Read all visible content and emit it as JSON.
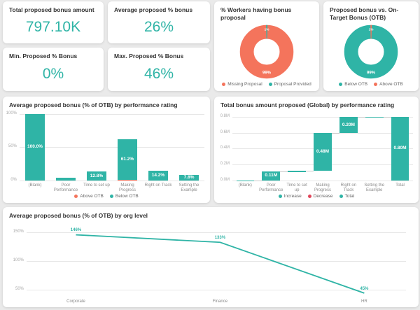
{
  "theme": {
    "teal": "#2FB4A6",
    "coral": "#F4745C",
    "red": "#E0465A",
    "page_bg": "#EAEAEA",
    "card_bg": "#FFFFFF",
    "title_color": "#333333",
    "axis_text": "#A9A9A9",
    "legend_text": "#666666",
    "grid_line": "#E6E6E6"
  },
  "kpi_cards": [
    {
      "title": "Total proposed bonus amount",
      "value": "797.10K"
    },
    {
      "title": "Average proposed % bonus",
      "value": "26%"
    },
    {
      "title": "Min. Proposed % Bonus",
      "value": "0%"
    },
    {
      "title": "Max. Proposed % Bonus",
      "value": "46%"
    }
  ],
  "chart_data": [
    {
      "type": "pie",
      "title": "% Workers having bonus proposal",
      "slices": [
        {
          "label": "Missing Proposal",
          "value": 99,
          "color_key": "coral",
          "data_label": "99%"
        },
        {
          "label": "Proposal Provided",
          "value": 1,
          "color_key": "teal",
          "data_label": "1%"
        }
      ],
      "legend": [
        {
          "label": "Missing Proposal",
          "color_key": "coral"
        },
        {
          "label": "Proposal Provided",
          "color_key": "teal"
        }
      ],
      "legend_position": "bottom"
    },
    {
      "type": "pie",
      "title": "Proposed bonus vs. On-Target Bonus (OTB)",
      "slices": [
        {
          "label": "Below OTB",
          "value": 99,
          "color_key": "teal",
          "data_label": "99%"
        },
        {
          "label": "Above OTB",
          "value": 1,
          "color_key": "coral",
          "data_label": "1%"
        }
      ],
      "legend": [
        {
          "label": "Below OTB",
          "color_key": "teal"
        },
        {
          "label": "Above OTB",
          "color_key": "coral"
        }
      ],
      "legend_position": "bottom"
    },
    {
      "type": "bar",
      "title": "Average proposed bonus (% of OTB) by performance rating",
      "categories": [
        "(Blank)",
        "Poor Performance",
        "Time to set up",
        "Making Progress",
        "Right on Track",
        "Setting the Example"
      ],
      "series": [
        {
          "name": "Above OTB",
          "color_key": "coral",
          "values": [
            0,
            0,
            0,
            0.8,
            0,
            0
          ],
          "data_labels": [
            "",
            "",
            "",
            "",
            "",
            ""
          ]
        },
        {
          "name": "Below OTB",
          "color_key": "teal",
          "values": [
            100.0,
            4.0,
            12.8,
            61.2,
            14.2,
            7.8
          ],
          "data_labels": [
            "100.0%",
            "",
            "12.8%",
            "61.2%",
            "14.2%",
            "7.8%"
          ]
        }
      ],
      "ylim": [
        0,
        100
      ],
      "yticks": [
        {
          "value": 0,
          "label": "0%"
        },
        {
          "value": 50,
          "label": "50%"
        },
        {
          "value": 100,
          "label": "100%"
        }
      ],
      "legend": [
        {
          "label": "Above OTB",
          "color_key": "coral"
        },
        {
          "label": "Below OTB",
          "color_key": "teal"
        }
      ],
      "legend_position": "bottom",
      "grid": true
    },
    {
      "type": "waterfall",
      "title": "Total bonus amount proposed (Global) by performance rating",
      "categories": [
        "(Blank)",
        "Poor Performance",
        "Time to set up",
        "Making Progress",
        "Right on Track",
        "Setting the Example",
        "Total"
      ],
      "values": [
        0.001,
        0.11,
        0.008,
        0.48,
        0.2,
        0.003,
        0.8
      ],
      "is_total": [
        false,
        false,
        false,
        false,
        false,
        false,
        true
      ],
      "data_labels": [
        "",
        "0.11M",
        "",
        "0.48M",
        "0.20M",
        "",
        "0.80M"
      ],
      "ylim": [
        0,
        0.84
      ],
      "yticks": [
        {
          "value": 0,
          "label": "0.0M"
        },
        {
          "value": 0.2,
          "label": "0.2M"
        },
        {
          "value": 0.4,
          "label": "0.4M"
        },
        {
          "value": 0.6,
          "label": "0.6M"
        },
        {
          "value": 0.8,
          "label": "0.8M"
        }
      ],
      "legend": [
        {
          "label": "Increase",
          "color_key": "teal"
        },
        {
          "label": "Decrease",
          "color_key": "red"
        },
        {
          "label": "Total",
          "color_key": "teal"
        }
      ],
      "legend_position": "bottom",
      "grid": true
    },
    {
      "type": "line",
      "title": "Average proposed bonus (% of OTB) by org level",
      "categories": [
        "Corporate",
        "Finance",
        "HR"
      ],
      "values": [
        146,
        133,
        45
      ],
      "data_labels": [
        "146%",
        "133%",
        "45%"
      ],
      "ylim": [
        40,
        160
      ],
      "yticks": [
        {
          "value": 50,
          "label": "50%"
        },
        {
          "value": 100,
          "label": "100%"
        },
        {
          "value": 150,
          "label": "150%"
        }
      ],
      "grid": true,
      "legend_position": "none"
    }
  ]
}
